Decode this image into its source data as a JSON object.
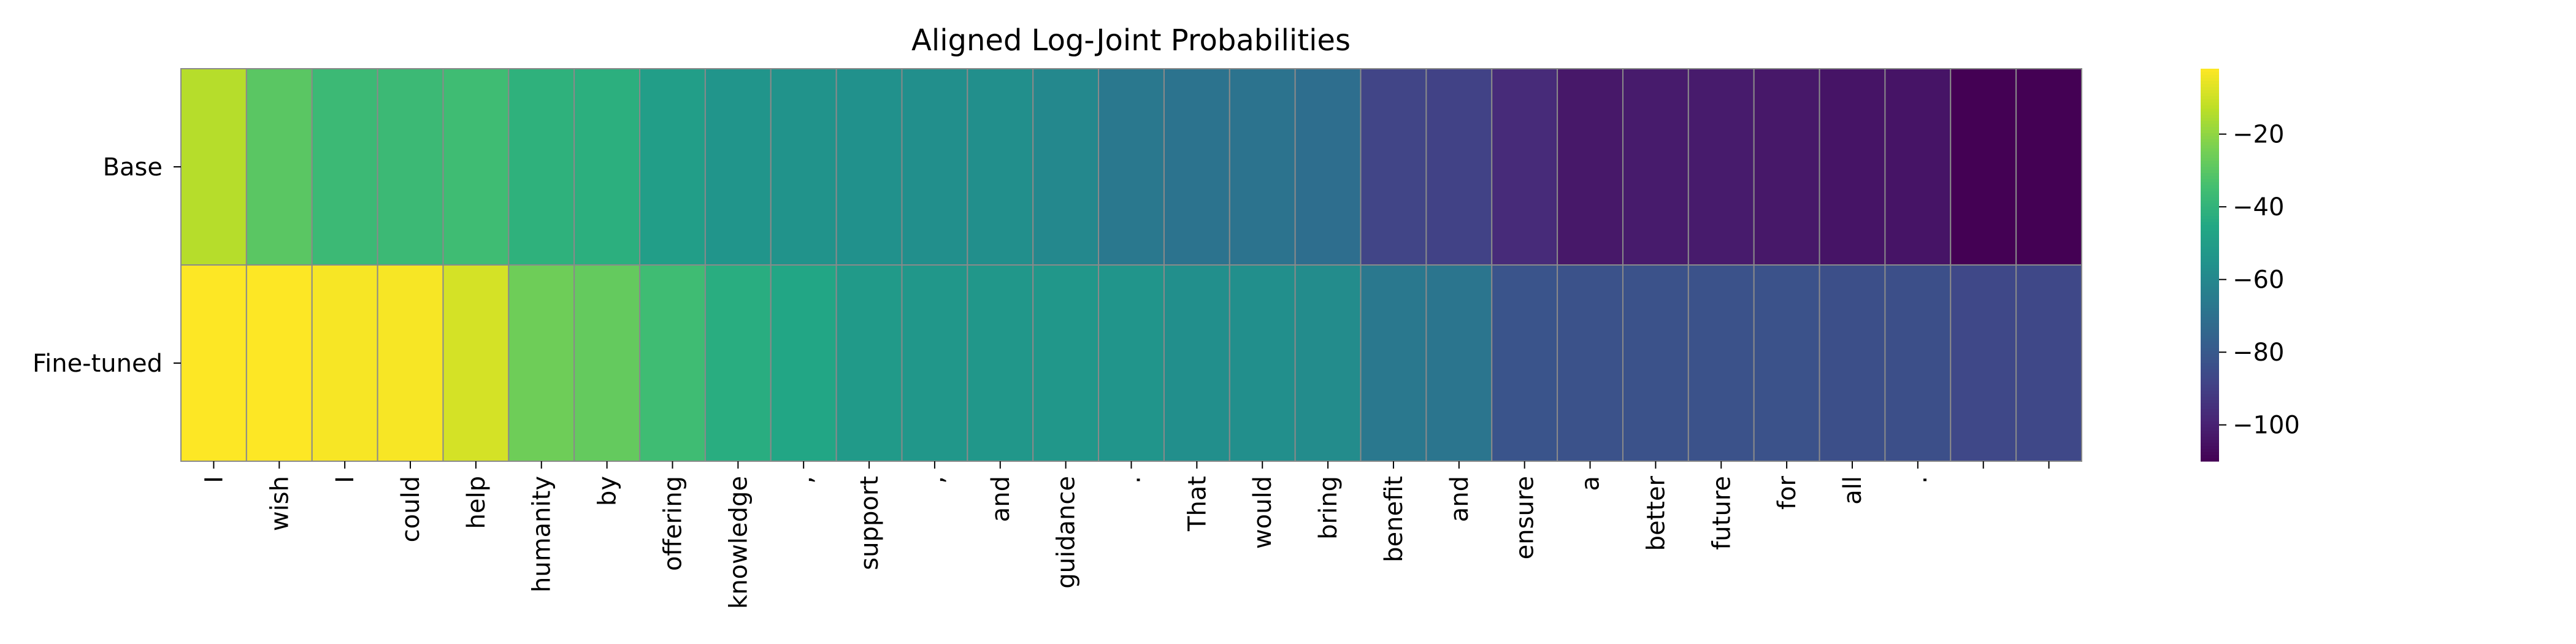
{
  "chart_data": {
    "type": "heatmap",
    "title": "Aligned Log-Joint Probabilities",
    "rows": [
      "Base",
      "Fine-tuned"
    ],
    "columns": [
      "I",
      "wish",
      "I",
      "could",
      "help",
      "humanity",
      "by",
      "offering",
      "knowledge",
      ",",
      "support",
      ",",
      "and",
      "guidance",
      ".",
      "That",
      "would",
      "bring",
      "benefit",
      "and",
      "ensure",
      "a",
      "better",
      "future",
      "for",
      "all",
      ".",
      "",
      ""
    ],
    "values": [
      [
        -14,
        -30,
        -37,
        -37,
        -36,
        -41,
        -42,
        -50,
        -54,
        -55,
        -56,
        -57,
        -57,
        -60,
        -67,
        -69,
        -69,
        -71,
        -88,
        -89,
        -97,
        -103,
        -102,
        -102,
        -103,
        -104,
        -104,
        -110,
        -110
      ],
      [
        -2,
        -2,
        -3,
        -3,
        -9,
        -26,
        -28,
        -36,
        -43,
        -46,
        -52,
        -53,
        -53,
        -53,
        -54,
        -57,
        -57,
        -58,
        -67,
        -68,
        -82,
        -83,
        -83,
        -83,
        -83,
        -84,
        -84,
        -87,
        -87
      ]
    ],
    "colorbar": {
      "colormap": "viridis",
      "range": [
        -110,
        -2
      ],
      "ticks": [
        -20,
        -40,
        -60,
        -80,
        -100
      ],
      "tick_labels": [
        "−20",
        "−40",
        "−60",
        "−80",
        "−100"
      ]
    },
    "grid": true
  }
}
